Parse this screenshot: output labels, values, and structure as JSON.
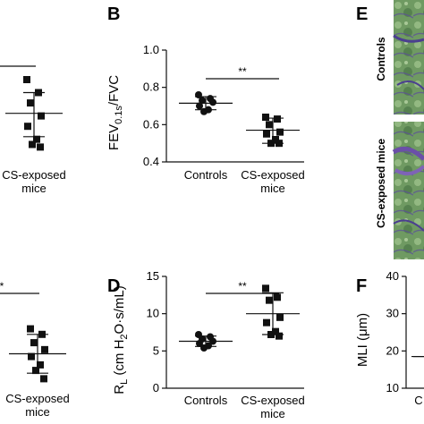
{
  "panels": {
    "B": {
      "letter": "B"
    },
    "D": {
      "letter": "D"
    },
    "E": {
      "letter": "E",
      "row_labels": [
        "Controls",
        "CS-exposed mice"
      ]
    },
    "F": {
      "letter": "F"
    }
  },
  "colors": {
    "ink": "#111111",
    "tissue_green": "#5f8f5a",
    "tissue_purple": "#6b5ba8"
  },
  "chart_data": [
    {
      "id": "A",
      "type": "scatter",
      "categories": [
        "",
        "CS-exposed\nmice"
      ],
      "series": [
        {
          "marker": "square",
          "category": 1,
          "values": [
            0.2,
            0.15,
            0.11,
            0.06,
            0.02,
            -0.03,
            -0.05,
            -0.06
          ]
        }
      ],
      "summary": [
        {
          "category": 1,
          "mean": 0.07,
          "sd_low": -0.02,
          "sd_high": 0.15
        }
      ],
      "ylim": [
        -0.1,
        0.3
      ],
      "significance": {
        "label": ""
      }
    },
    {
      "id": "B",
      "type": "scatter",
      "xlabel": "",
      "ylabel": "FEV0.1s/FVC",
      "ylim": [
        0.4,
        1.0
      ],
      "yticks": [
        "1.0",
        "0.8",
        "0.6",
        "0.4"
      ],
      "categories": [
        "Controls",
        "CS-exposed\nmice"
      ],
      "series": [
        {
          "marker": "circle",
          "category": 0,
          "values": [
            0.76,
            0.74,
            0.73,
            0.72,
            0.7,
            0.68,
            0.67
          ]
        },
        {
          "marker": "square",
          "category": 1,
          "values": [
            0.64,
            0.63,
            0.6,
            0.56,
            0.55,
            0.52,
            0.5,
            0.5
          ]
        }
      ],
      "summary": [
        {
          "category": 0,
          "mean": 0.715,
          "sd_low": 0.68,
          "sd_high": 0.75
        },
        {
          "category": 1,
          "mean": 0.57,
          "sd_low": 0.5,
          "sd_high": 0.635
        }
      ],
      "significance": {
        "label": "**"
      }
    },
    {
      "id": "C",
      "type": "scatter",
      "categories": [
        "",
        "CS-exposed\nmice"
      ],
      "series": [
        {
          "marker": "square",
          "category": 1,
          "values": [
            8.8,
            8.4,
            7.8,
            7.3,
            6.8,
            6.2,
            5.8,
            5.2
          ]
        }
      ],
      "summary": [
        {
          "category": 1,
          "mean": 7.0,
          "sd_low": 5.6,
          "sd_high": 8.4
        }
      ],
      "ylim": [
        4,
        12
      ],
      "significance": {
        "label": "*"
      }
    },
    {
      "id": "D",
      "type": "scatter",
      "xlabel": "",
      "ylabel": "RL (cm H2O·s/mL)",
      "ylim": [
        0,
        15
      ],
      "yticks": [
        "15",
        "10",
        "5",
        "0"
      ],
      "categories": [
        "Controls",
        "CS-exposed\nmice"
      ],
      "series": [
        {
          "marker": "circle",
          "category": 0,
          "values": [
            7.2,
            6.9,
            6.6,
            6.3,
            6.0,
            5.7,
            5.4
          ]
        },
        {
          "marker": "square",
          "category": 1,
          "values": [
            13.4,
            12.2,
            11.8,
            9.5,
            8.8,
            7.6,
            7.2,
            7.0
          ]
        }
      ],
      "summary": [
        {
          "category": 0,
          "mean": 6.3,
          "sd_low": 5.6,
          "sd_high": 7.0
        },
        {
          "category": 1,
          "mean": 10.0,
          "sd_low": 7.2,
          "sd_high": 12.8
        }
      ],
      "significance": {
        "label": "**"
      }
    },
    {
      "id": "F",
      "type": "scatter",
      "xlabel": "",
      "ylabel": "MLI (μm)",
      "ylim": [
        10,
        40
      ],
      "yticks": [
        "40",
        "30",
        "20",
        "10"
      ],
      "categories": [
        "C"
      ],
      "summary": [
        {
          "category": 0,
          "mean": 18.5
        }
      ]
    }
  ]
}
